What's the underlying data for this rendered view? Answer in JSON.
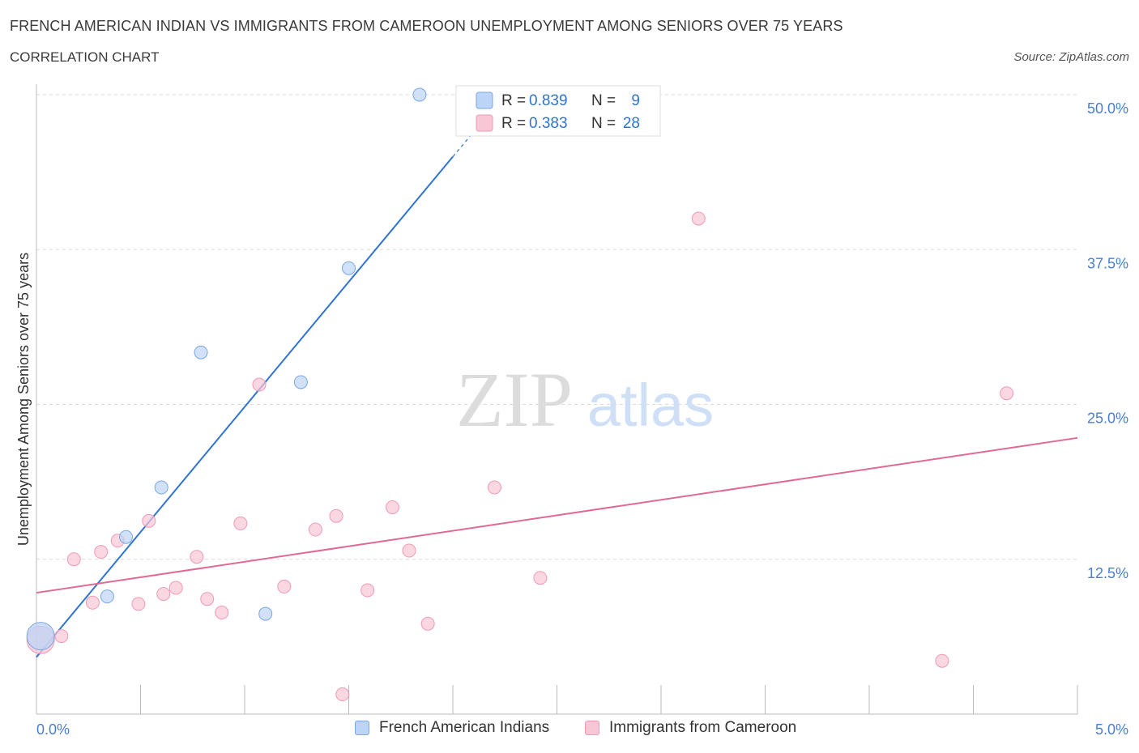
{
  "header": {
    "title": "FRENCH AMERICAN INDIAN VS IMMIGRANTS FROM CAMEROON UNEMPLOYMENT AMONG SENIORS OVER 75 YEARS",
    "subtitle": "CORRELATION CHART",
    "source": "Source: ZipAtlas.com"
  },
  "watermark": {
    "zip": "ZIP",
    "atlas": "atlas"
  },
  "legend_top": [
    {
      "r_label": "R =",
      "r_value": "0.839",
      "n_label": "N =",
      "n_value": "9"
    },
    {
      "r_label": "R =",
      "r_value": "0.383",
      "n_label": "N =",
      "n_value": "28"
    }
  ],
  "colors": {
    "blue_fill": "#bcd4f5",
    "blue_stroke": "#7aa7e3",
    "blue_line": "#2f74d0",
    "pink_fill": "#f9c6d6",
    "pink_stroke": "#ee9ab5",
    "pink_line": "#e06a94",
    "axis_label": "#4a7fcf",
    "grid": "#d9d9d9"
  },
  "chart_data": {
    "type": "scatter",
    "title": "FRENCH AMERICAN INDIAN VS IMMIGRANTS FROM CAMEROON UNEMPLOYMENT AMONG SENIORS OVER 75 YEARS",
    "xlabel": "",
    "ylabel": "Unemployment Among Seniors over 75 years",
    "xlim": [
      0,
      5
    ],
    "ylim": [
      0,
      50
    ],
    "x_tick_labels": [
      "0.0%",
      "5.0%"
    ],
    "y_ticks": [
      12.5,
      25,
      37.5,
      50
    ],
    "y_tick_labels": [
      "12.5%",
      "25.0%",
      "37.5%",
      "50.0%"
    ],
    "series": [
      {
        "name": "French American Indians",
        "color": "blue",
        "r": 0.839,
        "n": 9,
        "points": [
          {
            "x": 0.02,
            "y": 6.3,
            "big": true
          },
          {
            "x": 0.34,
            "y": 9.5
          },
          {
            "x": 0.43,
            "y": 14.3
          },
          {
            "x": 0.6,
            "y": 18.3
          },
          {
            "x": 0.79,
            "y": 29.2
          },
          {
            "x": 1.1,
            "y": 8.1
          },
          {
            "x": 1.27,
            "y": 26.8
          },
          {
            "x": 1.5,
            "y": 36.0
          },
          {
            "x": 1.84,
            "y": 50.0
          }
        ],
        "trend": {
          "x0": 0.0,
          "y0": 4.6,
          "x1": 2.0,
          "y1": 45.0,
          "x_dash_end": 2.12,
          "y_dash_end": 47.4
        }
      },
      {
        "name": "Immigrants from Cameroon",
        "color": "pink",
        "r": 0.383,
        "n": 28,
        "points": [
          {
            "x": 0.02,
            "y": 6.0,
            "big": true
          },
          {
            "x": 0.12,
            "y": 6.3
          },
          {
            "x": 0.18,
            "y": 12.5
          },
          {
            "x": 0.27,
            "y": 9.0
          },
          {
            "x": 0.31,
            "y": 13.1
          },
          {
            "x": 0.39,
            "y": 14.0
          },
          {
            "x": 0.49,
            "y": 8.9
          },
          {
            "x": 0.54,
            "y": 15.6
          },
          {
            "x": 0.61,
            "y": 9.7
          },
          {
            "x": 0.67,
            "y": 10.2
          },
          {
            "x": 0.77,
            "y": 12.7
          },
          {
            "x": 0.82,
            "y": 9.3
          },
          {
            "x": 0.89,
            "y": 8.2
          },
          {
            "x": 0.98,
            "y": 15.4
          },
          {
            "x": 1.07,
            "y": 26.6
          },
          {
            "x": 1.19,
            "y": 10.3
          },
          {
            "x": 1.34,
            "y": 14.9
          },
          {
            "x": 1.44,
            "y": 16.0
          },
          {
            "x": 1.47,
            "y": 1.6
          },
          {
            "x": 1.59,
            "y": 10.0
          },
          {
            "x": 1.71,
            "y": 16.7
          },
          {
            "x": 1.79,
            "y": 13.2
          },
          {
            "x": 1.88,
            "y": 7.3
          },
          {
            "x": 2.2,
            "y": 18.3
          },
          {
            "x": 2.42,
            "y": 11.0
          },
          {
            "x": 3.18,
            "y": 40.0
          },
          {
            "x": 4.35,
            "y": 4.3
          },
          {
            "x": 4.66,
            "y": 25.9
          }
        ],
        "trend": {
          "x0": 0.0,
          "y0": 9.8,
          "x1": 5.0,
          "y1": 22.3
        }
      }
    ]
  },
  "legend_bottom": [
    {
      "label": "French American Indians"
    },
    {
      "label": "Immigrants from Cameroon"
    }
  ]
}
